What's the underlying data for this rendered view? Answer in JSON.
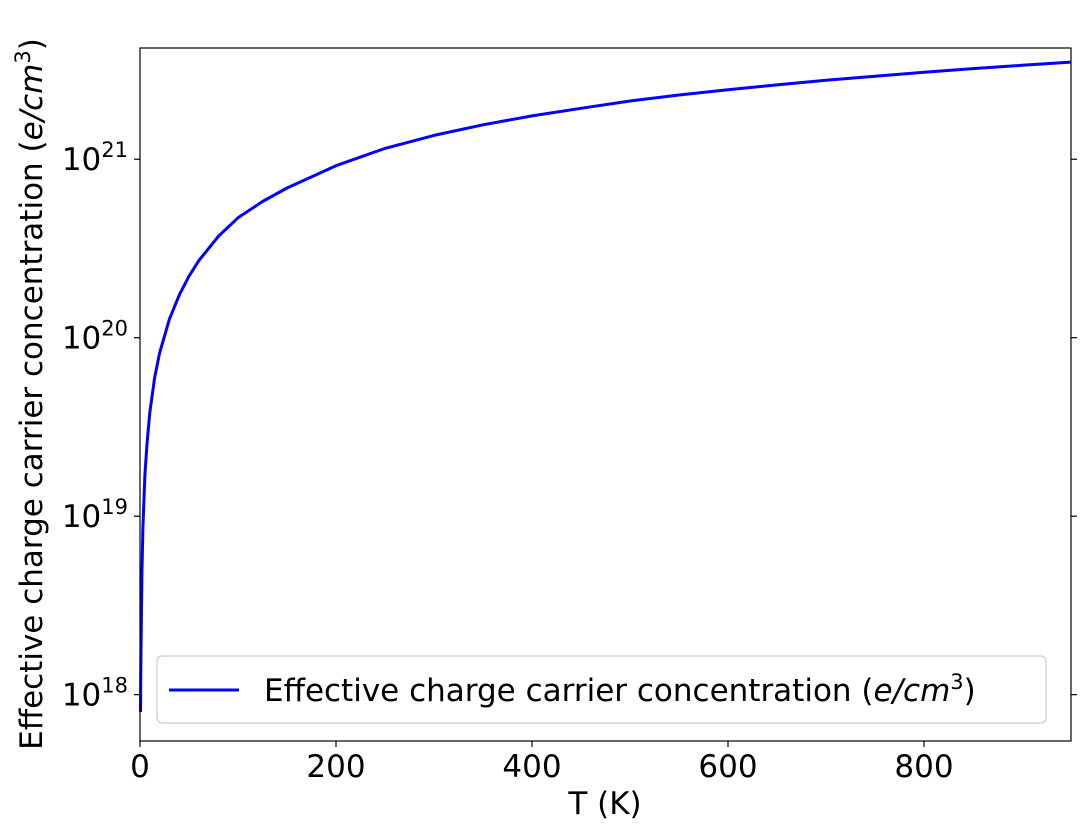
{
  "chart_data": {
    "type": "line",
    "title": "",
    "xlabel": "T (K)",
    "ylabel": "Effective charge carrier concentration",
    "ylabel_math": "e/cm",
    "ylabel_sup": "3",
    "xlim": [
      0,
      950
    ],
    "ylim": [
      5.5e+17,
      4.2e+21
    ],
    "y_scale": "log",
    "grid": false,
    "legend_position": "lower-right",
    "x_ticks": [
      {
        "value": 0,
        "label": "0"
      },
      {
        "value": 200,
        "label": "200"
      },
      {
        "value": 400,
        "label": "400"
      },
      {
        "value": 600,
        "label": "600"
      },
      {
        "value": 800,
        "label": "800"
      }
    ],
    "y_ticks": [
      {
        "value": 1e+18,
        "base": "10",
        "exp": "18"
      },
      {
        "value": 1e+19,
        "base": "10",
        "exp": "19"
      },
      {
        "value": 1e+20,
        "base": "10",
        "exp": "20"
      },
      {
        "value": 1e+21,
        "base": "10",
        "exp": "21"
      }
    ],
    "series": [
      {
        "name": "Effective charge carrier concentration",
        "name_math": "e/cm",
        "name_sup": "3",
        "color": "#0000ff",
        "x": [
          0.5,
          1,
          2,
          3,
          5,
          7,
          10,
          15,
          20,
          30,
          40,
          50,
          60,
          80,
          100,
          125,
          150,
          200,
          250,
          300,
          350,
          400,
          450,
          500,
          550,
          600,
          650,
          700,
          750,
          800,
          850,
          900,
          950
        ],
        "y": [
          8e+17,
          1.8e+18,
          5e+18,
          8.6e+18,
          1.7e+19,
          2.5e+19,
          3.8e+19,
          6e+19,
          8.2e+19,
          1.27e+20,
          1.73e+20,
          2.21e+20,
          2.7e+20,
          3.7e+20,
          4.7e+20,
          5.8e+20,
          6.9e+20,
          9.2e+20,
          1.15e+21,
          1.36e+21,
          1.56e+21,
          1.75e+21,
          1.93e+21,
          2.12e+21,
          2.29e+21,
          2.45e+21,
          2.61e+21,
          2.77e+21,
          2.92e+21,
          3.07e+21,
          3.22e+21,
          3.36e+21,
          3.5e+21
        ]
      }
    ]
  }
}
